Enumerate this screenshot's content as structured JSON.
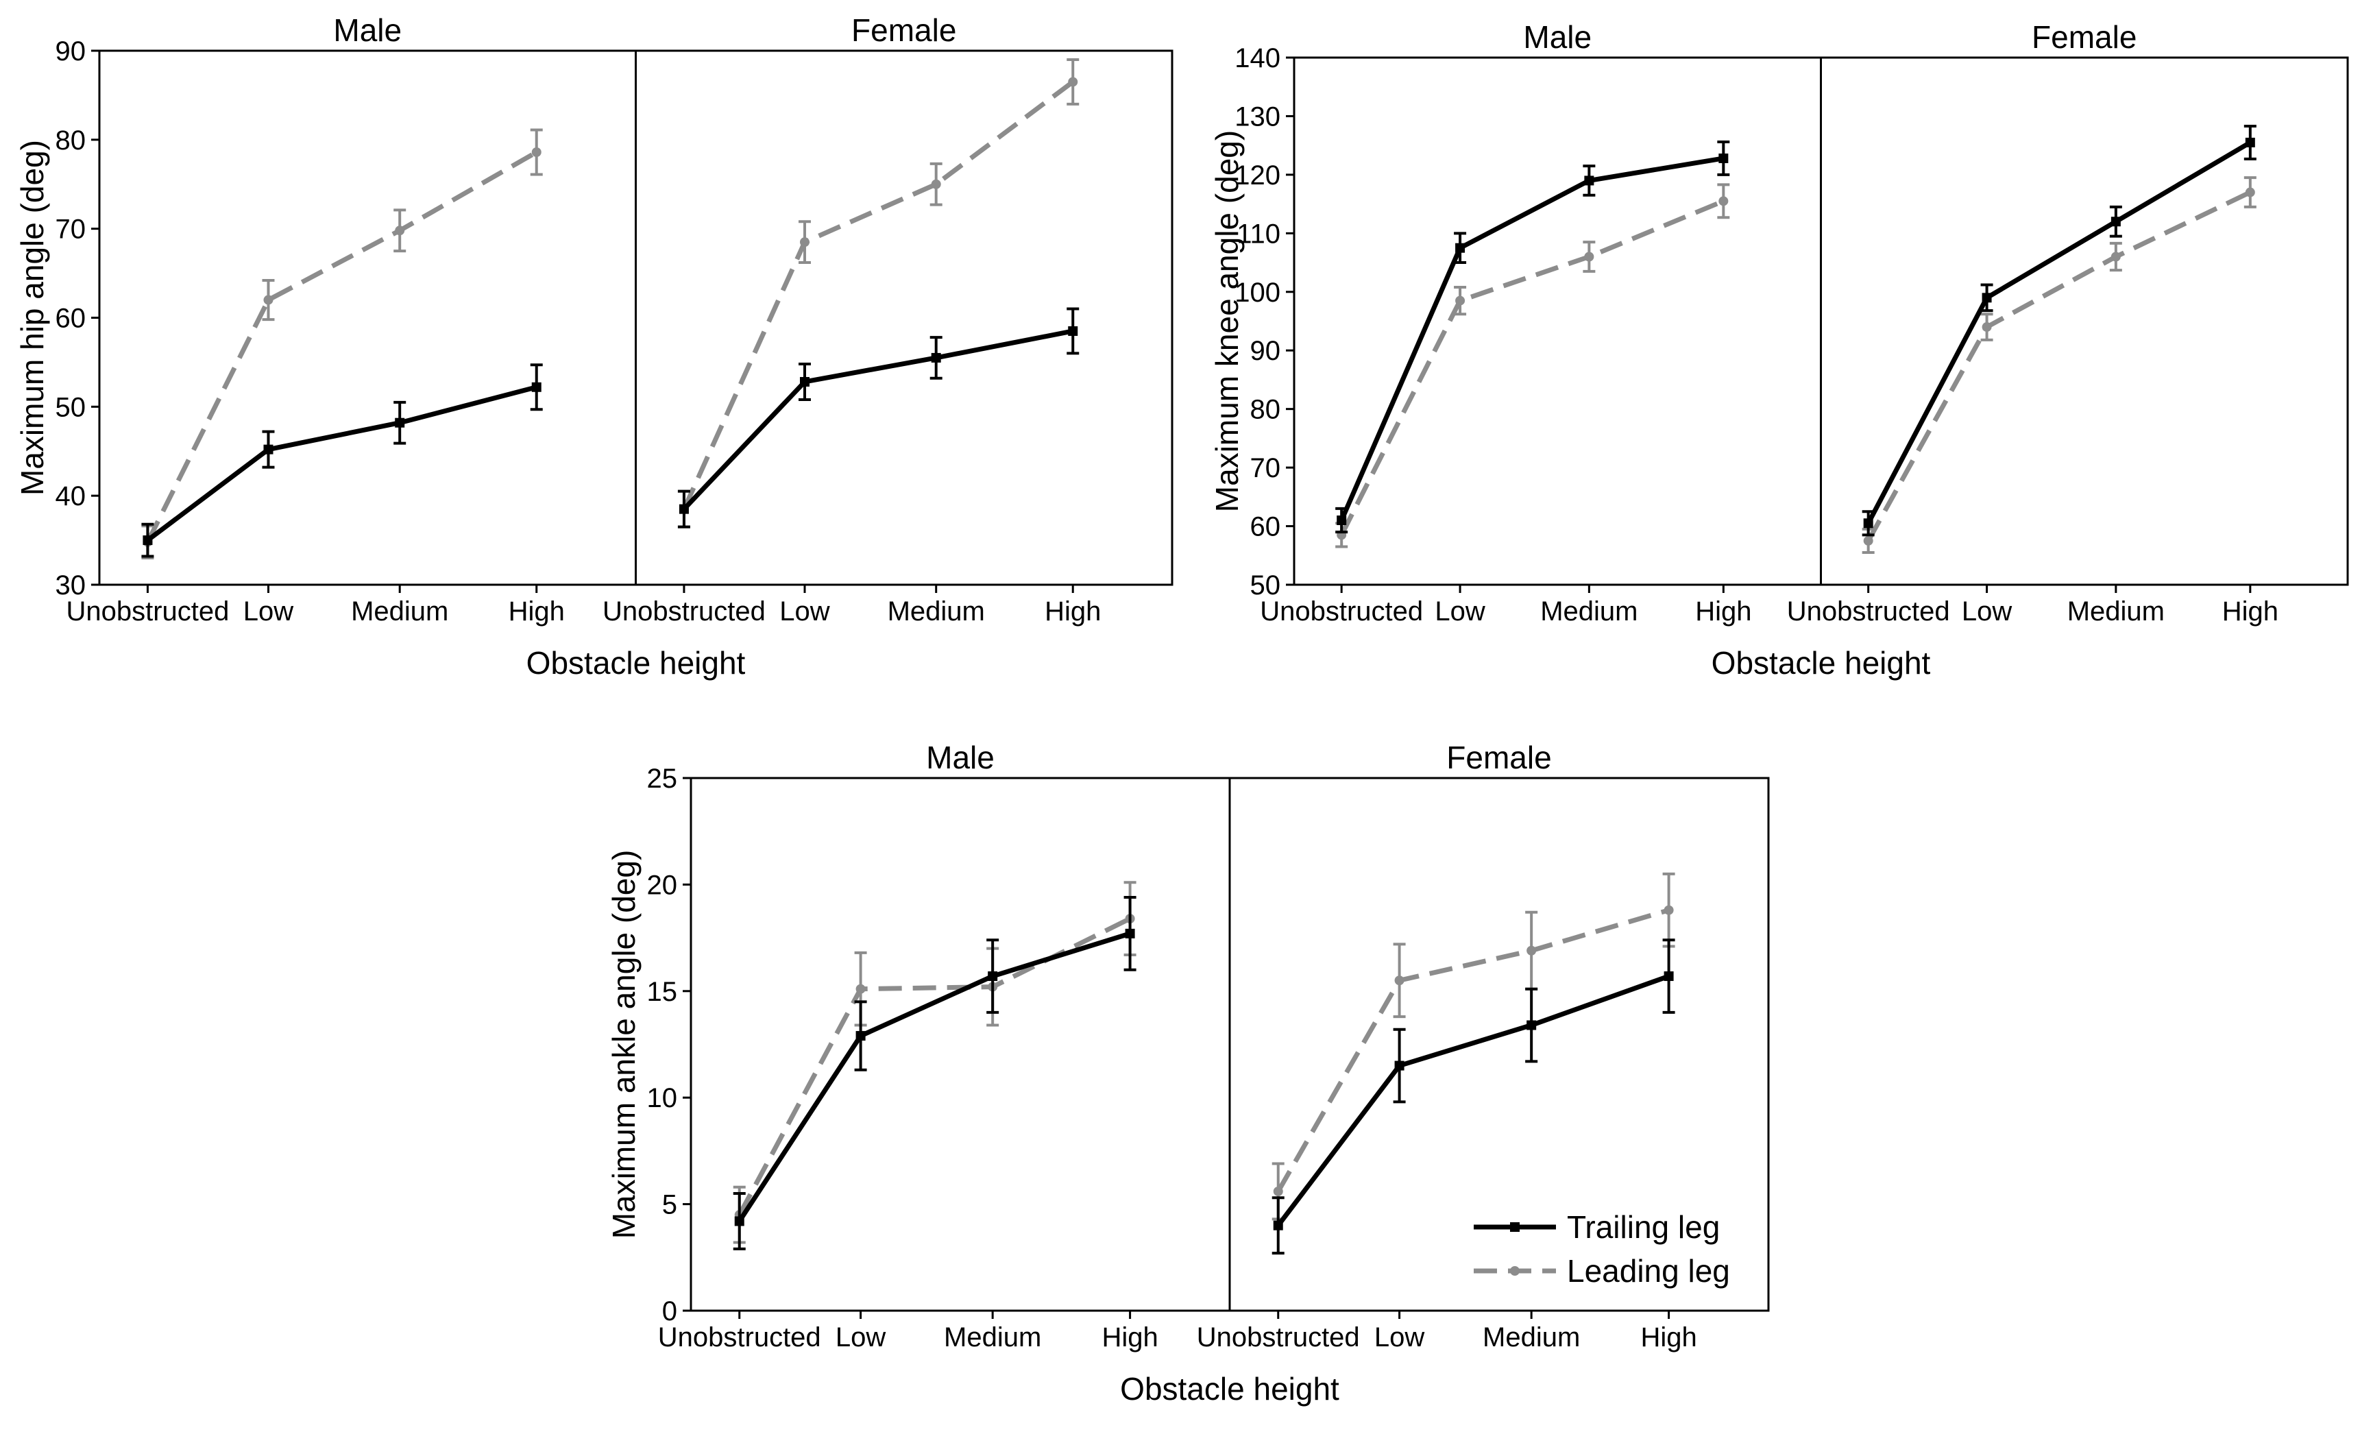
{
  "colors": {
    "trailing": "#000000",
    "leading": "#8c8c8c",
    "frame": "#000000"
  },
  "legend": [
    {
      "key": "trailing",
      "label": "Trailing leg"
    },
    {
      "key": "leading",
      "label": "Leading leg"
    }
  ],
  "chart_data": [
    {
      "type": "line",
      "id": "hip",
      "ylabel": "Maximum hip angle (deg)",
      "xlabel": "Obstacle height",
      "ylim": [
        30,
        90
      ],
      "yticks": [
        30,
        40,
        50,
        60,
        70,
        80,
        90
      ],
      "categories": [
        "Unobstructed",
        "Low",
        "Medium",
        "High"
      ],
      "panels": [
        {
          "title": "Male",
          "series": [
            {
              "name": "Trailing leg",
              "key": "trailing",
              "values": [
                35,
                45.2,
                48.2,
                52.2
              ],
              "errors": [
                1.8,
                2.0,
                2.3,
                2.5
              ]
            },
            {
              "name": "Leading leg",
              "key": "leading",
              "values": [
                34.8,
                62,
                69.8,
                78.6
              ],
              "errors": [
                1.8,
                2.2,
                2.3,
                2.5
              ]
            }
          ]
        },
        {
          "title": "Female",
          "series": [
            {
              "name": "Trailing leg",
              "key": "trailing",
              "values": [
                38.5,
                52.8,
                55.5,
                58.5
              ],
              "errors": [
                2.0,
                2.0,
                2.3,
                2.5
              ]
            },
            {
              "name": "Leading leg",
              "key": "leading",
              "values": [
                38.5,
                68.5,
                75,
                86.5
              ],
              "errors": [
                2.0,
                2.3,
                2.3,
                2.5
              ]
            }
          ]
        }
      ]
    },
    {
      "type": "line",
      "id": "knee",
      "ylabel": "Maximum knee angle (deg)",
      "xlabel": "Obstacle height",
      "ylim": [
        50,
        140
      ],
      "yticks": [
        50,
        60,
        70,
        80,
        90,
        100,
        110,
        120,
        130,
        140
      ],
      "categories": [
        "Unobstructed",
        "Low",
        "Medium",
        "High"
      ],
      "panels": [
        {
          "title": "Male",
          "series": [
            {
              "name": "Trailing leg",
              "key": "trailing",
              "values": [
                61,
                107.5,
                119,
                122.8
              ],
              "errors": [
                2.0,
                2.5,
                2.5,
                2.8
              ]
            },
            {
              "name": "Leading leg",
              "key": "leading",
              "values": [
                58.5,
                98.5,
                106,
                115.5
              ],
              "errors": [
                2.0,
                2.3,
                2.5,
                2.8
              ]
            }
          ]
        },
        {
          "title": "Female",
          "series": [
            {
              "name": "Trailing leg",
              "key": "trailing",
              "values": [
                60.5,
                99,
                112,
                125.5
              ],
              "errors": [
                2.0,
                2.2,
                2.5,
                2.8
              ]
            },
            {
              "name": "Leading leg",
              "key": "leading",
              "values": [
                57.5,
                94,
                106,
                117
              ],
              "errors": [
                2.0,
                2.2,
                2.3,
                2.5
              ]
            }
          ]
        }
      ]
    },
    {
      "type": "line",
      "id": "ankle",
      "ylabel": "Maximum ankle angle (deg)",
      "xlabel": "Obstacle height",
      "ylim": [
        0,
        25
      ],
      "yticks": [
        0,
        5,
        10,
        15,
        20,
        25
      ],
      "categories": [
        "Unobstructed",
        "Low",
        "Medium",
        "High"
      ],
      "panels": [
        {
          "title": "Male",
          "series": [
            {
              "name": "Trailing leg",
              "key": "trailing",
              "values": [
                4.2,
                12.9,
                15.7,
                17.7
              ],
              "errors": [
                1.3,
                1.6,
                1.7,
                1.7
              ]
            },
            {
              "name": "Leading leg",
              "key": "leading",
              "values": [
                4.5,
                15.1,
                15.2,
                18.4
              ],
              "errors": [
                1.3,
                1.7,
                1.8,
                1.7
              ]
            }
          ]
        },
        {
          "title": "Female",
          "series": [
            {
              "name": "Trailing leg",
              "key": "trailing",
              "values": [
                4.0,
                11.5,
                13.4,
                15.7
              ],
              "errors": [
                1.3,
                1.7,
                1.7,
                1.7
              ]
            },
            {
              "name": "Leading leg",
              "key": "leading",
              "values": [
                5.6,
                15.5,
                16.9,
                18.8
              ],
              "errors": [
                1.3,
                1.7,
                1.8,
                1.7
              ]
            }
          ]
        }
      ]
    }
  ]
}
